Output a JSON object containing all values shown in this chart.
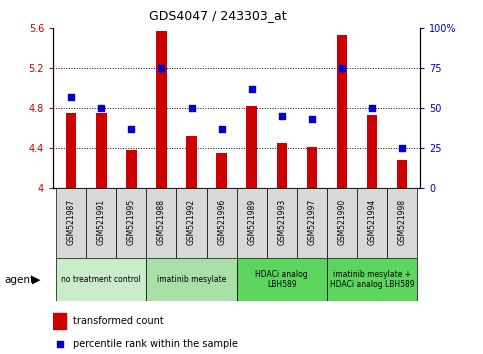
{
  "title": "GDS4047 / 243303_at",
  "samples": [
    "GSM521987",
    "GSM521991",
    "GSM521995",
    "GSM521988",
    "GSM521992",
    "GSM521996",
    "GSM521989",
    "GSM521993",
    "GSM521997",
    "GSM521990",
    "GSM521994",
    "GSM521998"
  ],
  "bar_values": [
    4.75,
    4.75,
    4.38,
    5.57,
    4.52,
    4.35,
    4.82,
    4.45,
    4.41,
    5.53,
    4.73,
    4.28
  ],
  "dot_values": [
    57,
    50,
    37,
    75,
    50,
    37,
    62,
    45,
    43,
    75,
    50,
    25
  ],
  "bar_color": "#cc0000",
  "dot_color": "#0000cc",
  "ylim_left": [
    4.0,
    5.6
  ],
  "ylim_right": [
    0,
    100
  ],
  "yticks_left": [
    4.0,
    4.4,
    4.8,
    5.2,
    5.6
  ],
  "ytick_labels_left": [
    "4",
    "4.4",
    "4.8",
    "5.2",
    "5.6"
  ],
  "yticks_right": [
    0,
    25,
    50,
    75,
    100
  ],
  "ytick_labels_right": [
    "0",
    "25",
    "50",
    "75",
    "100%"
  ],
  "gridlines": [
    4.4,
    4.8,
    5.2
  ],
  "groups": [
    {
      "label": "no treatment control",
      "start": 0,
      "end": 3,
      "color": "#c8edc8"
    },
    {
      "label": "imatinib mesylate",
      "start": 3,
      "end": 6,
      "color": "#a8e0a8"
    },
    {
      "label": "HDACi analog\nLBH589",
      "start": 6,
      "end": 9,
      "color": "#5cd65c"
    },
    {
      "label": "imatinib mesylate +\nHDACi analog LBH589",
      "start": 9,
      "end": 12,
      "color": "#5cd65c"
    }
  ],
  "agent_label": "agent",
  "legend_bar_label": "transformed count",
  "legend_dot_label": "percentile rank within the sample",
  "bar_width": 0.35,
  "tick_label_bg": "#d8d8d8"
}
